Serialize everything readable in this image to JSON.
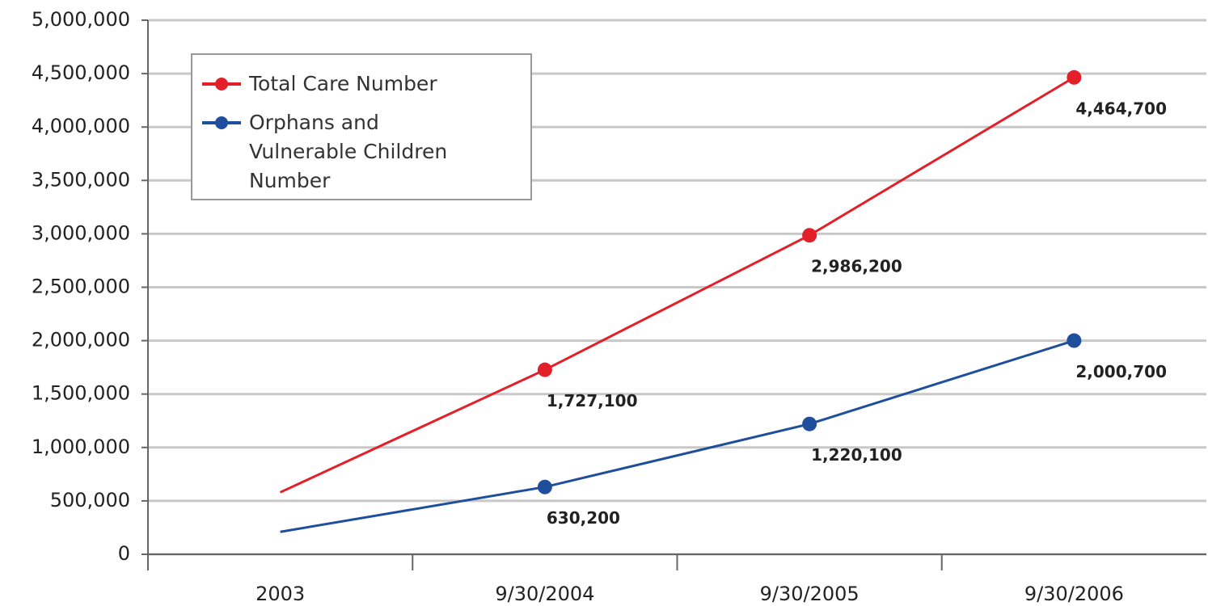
{
  "chart_data": {
    "type": "line",
    "categories": [
      "2003",
      "9/30/2004",
      "9/30/2005",
      "9/30/2006"
    ],
    "series": [
      {
        "name": "Total Care Number",
        "color": "#e3202a",
        "values": [
          580000,
          1727100,
          2986200,
          4464700
        ],
        "value_labels": [
          null,
          "1,727,100",
          "2,986,200",
          "4,464,700"
        ]
      },
      {
        "name": "Orphans and Vulnerable Children Number",
        "color": "#1f4f9c",
        "values": [
          210000,
          630200,
          1220100,
          2000700
        ],
        "value_labels": [
          null,
          "630,200",
          "1,220,100",
          "2,000,700"
        ]
      }
    ],
    "ylim": [
      0,
      5000000
    ],
    "yticks": [
      0,
      {
        "value": 500000,
        "label": "500,000"
      },
      {
        "value": 1000000,
        "label": "1,000,000"
      },
      {
        "value": 1500000,
        "label": "1,500,000"
      },
      {
        "value": 2000000,
        "label": "2,000,000"
      },
      {
        "value": 2500000,
        "label": "2,500,000"
      },
      {
        "value": 3000000,
        "label": "3,000,000"
      },
      {
        "value": 3500000,
        "label": "3,500,000"
      },
      {
        "value": 4000000,
        "label": "4,000,000"
      },
      {
        "value": 4500000,
        "label": "4,500,000"
      },
      {
        "value": 5000000,
        "label": "5,000,000"
      }
    ],
    "grid": true,
    "legend": "upper left"
  }
}
